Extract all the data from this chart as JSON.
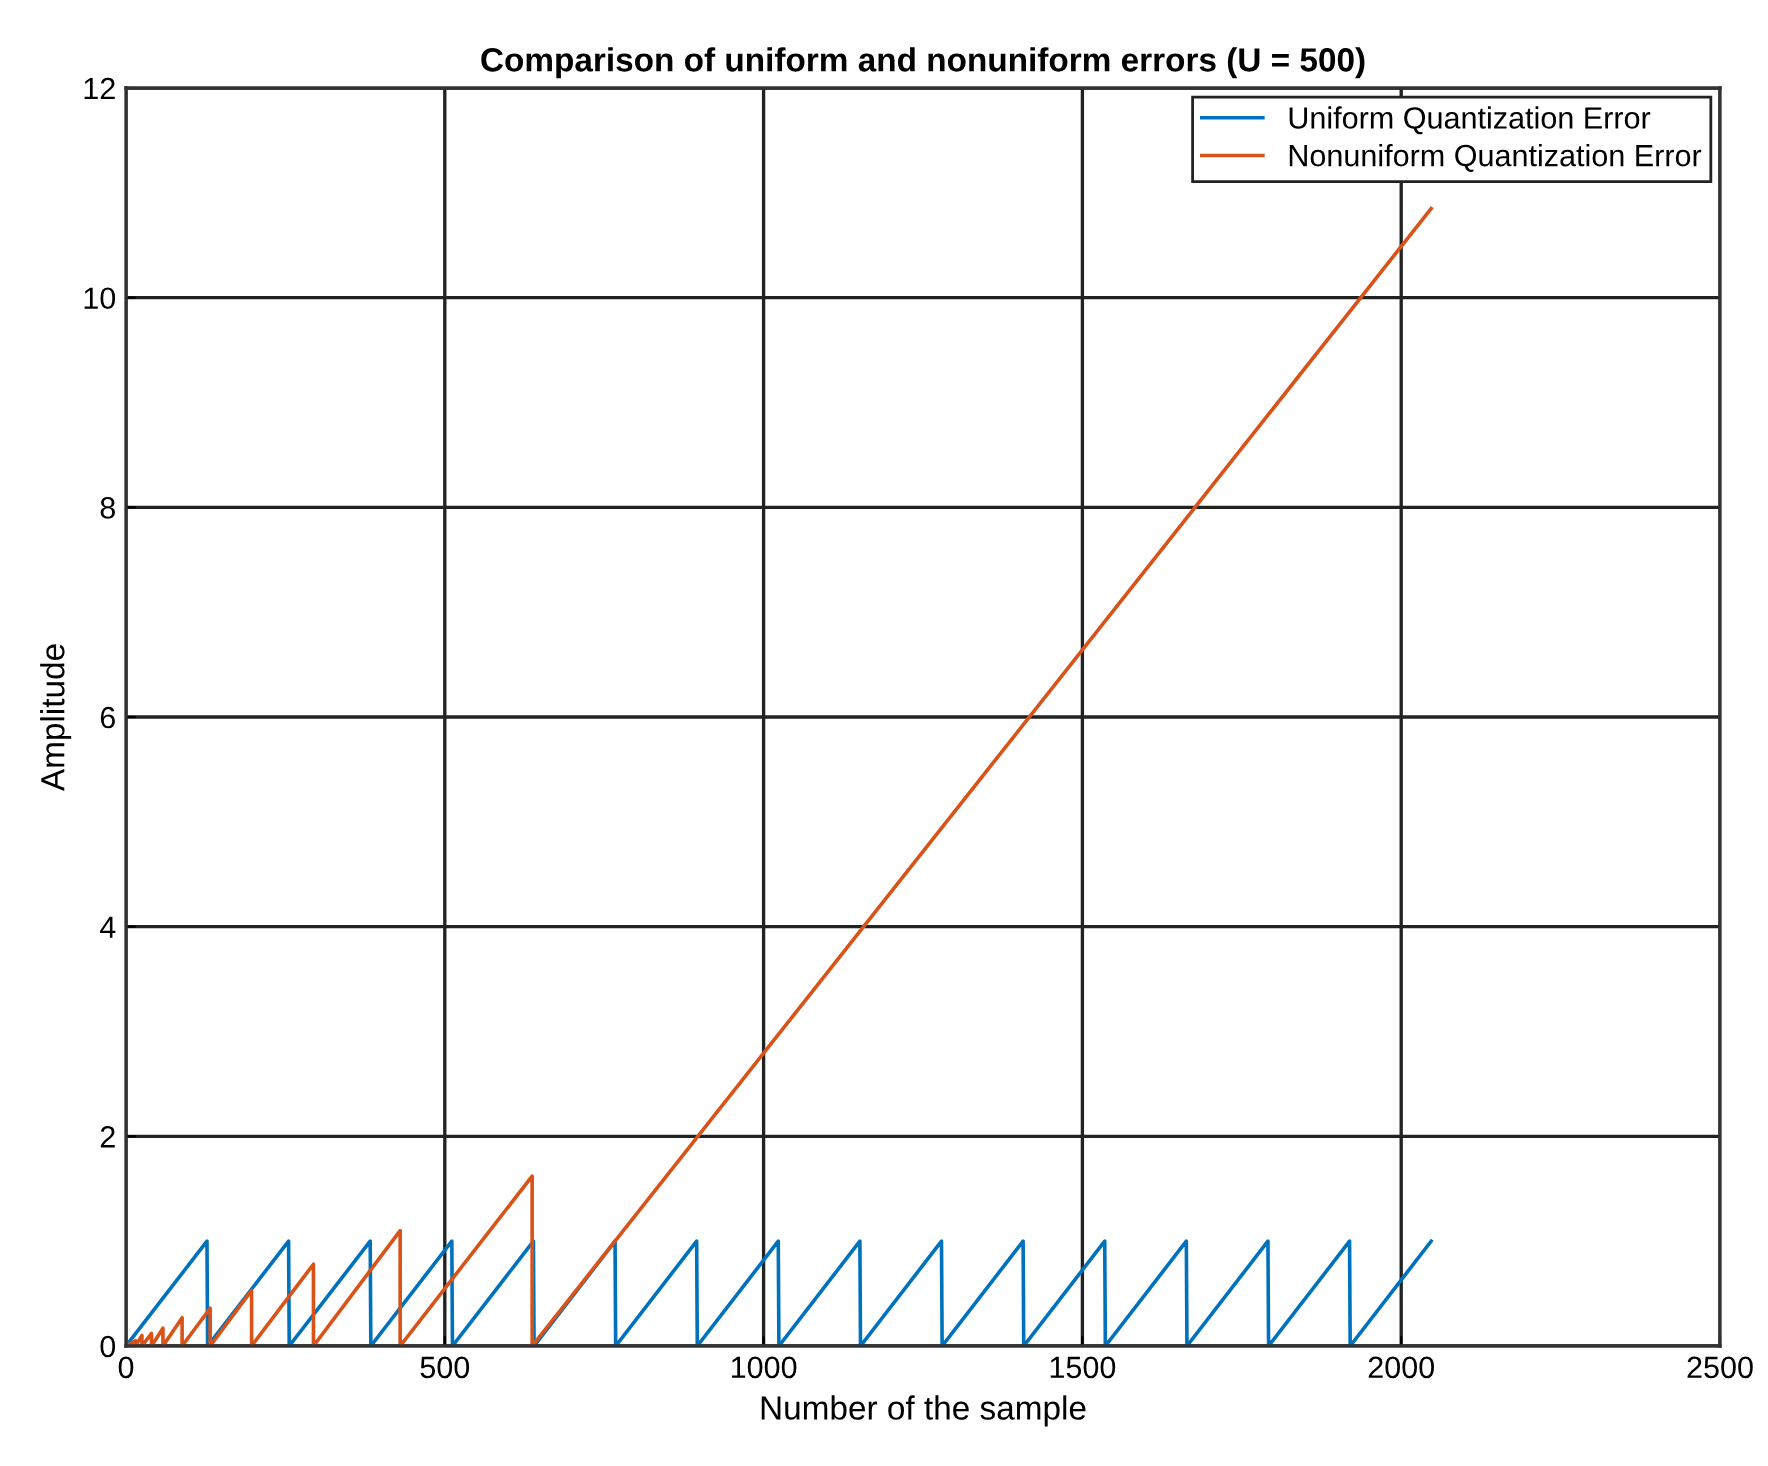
{
  "chart_data": {
    "type": "line",
    "title": "Comparison of uniform and nonuniform errors (U = 500)",
    "xlabel": "Number of the sample",
    "ylabel": "Amplitude",
    "series": [
      {
        "name": "Uniform Quantization Error",
        "color": "#0072bd",
        "x": [
          0,
          127,
          128,
          255,
          256,
          383,
          384,
          511,
          512,
          639,
          640,
          767,
          768,
          895,
          896,
          1023,
          1024,
          1151,
          1152,
          1279,
          1280,
          1407,
          1408,
          1535,
          1536,
          1663,
          1664,
          1791,
          1792,
          1919,
          1920,
          2047
        ],
        "values": [
          0,
          1,
          0,
          1,
          0,
          1,
          0,
          1,
          0,
          1,
          0,
          1,
          0,
          1,
          0,
          1,
          0,
          1,
          0,
          1,
          0,
          1,
          0,
          1,
          0,
          1,
          0,
          1,
          0,
          1,
          0,
          1
        ]
      },
      {
        "name": "Nonuniform Quantization Error",
        "color": "#d95319",
        "x": [
          0,
          15,
          15,
          25,
          25,
          40,
          40,
          58,
          58,
          88,
          88,
          132,
          132,
          197,
          197,
          294,
          294,
          430,
          430,
          637,
          637,
          2047
        ],
        "values": [
          0,
          0.05,
          0,
          0.1,
          0,
          0.12,
          0,
          0.17,
          0,
          0.27,
          0,
          0.36,
          0,
          0.53,
          0,
          0.78,
          0,
          1.1,
          0,
          1.62,
          0,
          10.85
        ]
      }
    ],
    "xlim": [
      0,
      2500
    ],
    "ylim": [
      0,
      12
    ],
    "xticks": [
      0,
      500,
      1000,
      1500,
      2000,
      2500
    ],
    "yticks": [
      0,
      2,
      4,
      6,
      8,
      10,
      12
    ],
    "grid": true,
    "legend": "top right"
  }
}
